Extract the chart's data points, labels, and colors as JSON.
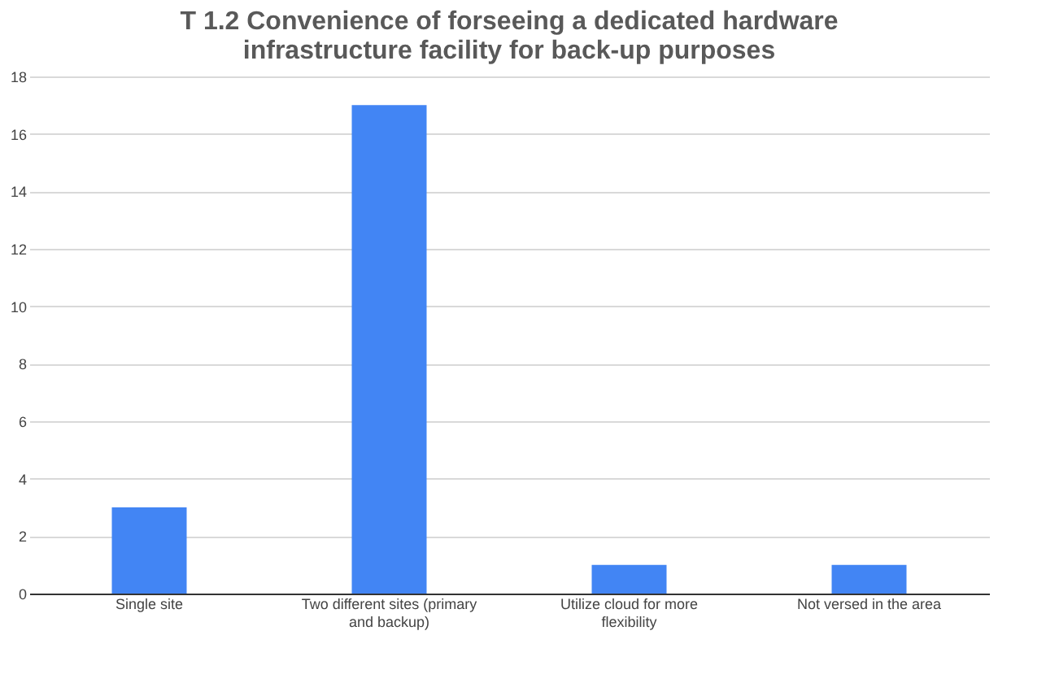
{
  "chart_data": {
    "type": "bar",
    "title": "T 1.2 Convenience of forseeing a dedicated hardware infrastructure facility for back-up purposes",
    "categories": [
      "Single site",
      "Two different sites (primary and backup)",
      "Utilize cloud for more flexibility",
      "Not versed in the area"
    ],
    "values": [
      3,
      17,
      1,
      1
    ],
    "color": "#4285f4",
    "ylim": [
      0,
      18
    ],
    "yticks": [
      0,
      2,
      4,
      6,
      8,
      10,
      12,
      14,
      16,
      18
    ],
    "grid": "y"
  }
}
